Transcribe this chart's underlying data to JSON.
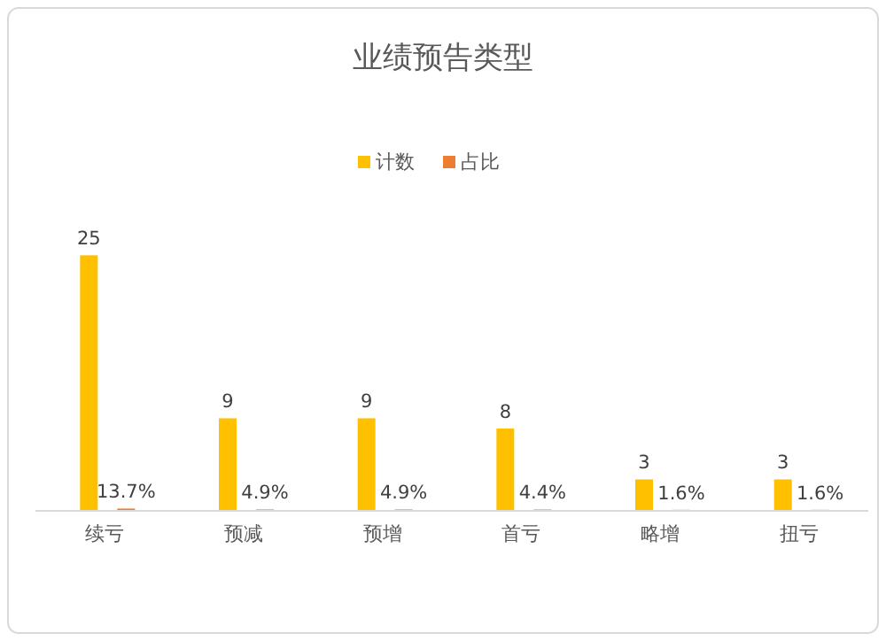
{
  "chart_data": {
    "type": "bar",
    "title": "业绩预告类型",
    "categories": [
      "续亏",
      "预减",
      "预增",
      "首亏",
      "略增",
      "扭亏"
    ],
    "series": [
      {
        "name": "计数",
        "color": "#ffc000",
        "values": [
          25,
          9,
          9,
          8,
          3,
          3
        ],
        "value_labels": [
          "25",
          "9",
          "9",
          "8",
          "3",
          "3"
        ]
      },
      {
        "name": "占比",
        "color": "#ed7d31",
        "values": [
          0.137,
          0.049,
          0.049,
          0.044,
          0.016,
          0.016
        ],
        "value_labels": [
          "13.7%",
          "4.9%",
          "4.9%",
          "4.4%",
          "1.6%",
          "1.6%"
        ]
      }
    ],
    "legend": "top"
  }
}
